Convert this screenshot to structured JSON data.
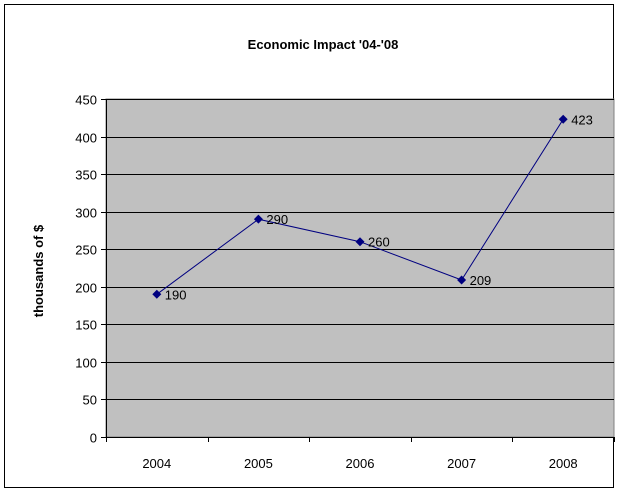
{
  "chart_data": {
    "type": "line",
    "title": "Economic Impact '04-'08",
    "xlabel": "",
    "ylabel": "thousands of $",
    "categories": [
      "2004",
      "2005",
      "2006",
      "2007",
      "2008"
    ],
    "series": [
      {
        "values": [
          190,
          290,
          260,
          209,
          423
        ],
        "color": "#000080",
        "data_labels": [
          "190",
          "290",
          "260",
          "209",
          "423"
        ]
      }
    ],
    "ylim": [
      0,
      450
    ],
    "yticks": [
      "0",
      "50",
      "100",
      "150",
      "200",
      "250",
      "300",
      "350",
      "400",
      "450"
    ],
    "grid": true,
    "plot_background": "#c0c0c0",
    "legend": "none"
  }
}
